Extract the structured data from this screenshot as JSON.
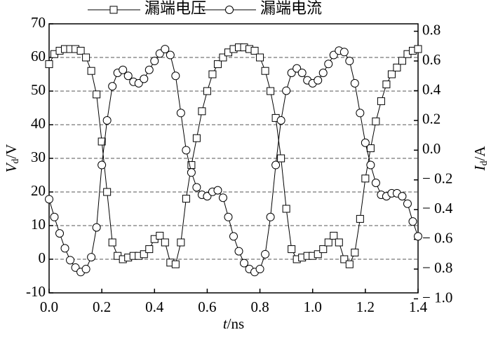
{
  "chart_data": {
    "type": "line",
    "legend": "top",
    "grid": true,
    "xlabel": {
      "var": "t",
      "unit": "/ns"
    },
    "ylabel": {
      "var": "V",
      "sub": "d",
      "unit": "/V"
    },
    "y2label": {
      "var": "I",
      "sub": "d",
      "unit": "/A"
    },
    "xlim": [
      0,
      1.4
    ],
    "xticks": [
      {
        "value": 0,
        "label": "0.0"
      },
      0.2,
      0.4,
      0.6,
      0.8,
      {
        "value": 1,
        "label": "1.0"
      },
      1.2,
      1.4
    ],
    "ylim": [
      -10,
      70
    ],
    "yticks": [
      -10,
      0,
      10,
      20,
      30,
      40,
      50,
      60,
      70
    ],
    "y2lim": [
      -0.96,
      0.85
    ],
    "y2ticks": [
      {
        "value": -1,
        "label": "− 1.0"
      },
      {
        "value": -0.8,
        "label": "− 0.8"
      },
      {
        "value": -0.6,
        "label": "− 0.6"
      },
      {
        "value": -0.4,
        "label": "− 0.4"
      },
      {
        "value": -0.2,
        "label": "− 0.2"
      },
      {
        "value": 0,
        "label": "0.0"
      },
      0.2,
      0.4,
      0.6,
      0.8
    ],
    "x": [
      0,
      0.02,
      0.04,
      0.06,
      0.08,
      0.1,
      0.12,
      0.14,
      0.16,
      0.18,
      0.2,
      0.22,
      0.24,
      0.26,
      0.28,
      0.3,
      0.32,
      0.34,
      0.36,
      0.38,
      0.4,
      0.42,
      0.44,
      0.46,
      0.48,
      0.5,
      0.52,
      0.54,
      0.56,
      0.58,
      0.6,
      0.62,
      0.64,
      0.66,
      0.68,
      0.7,
      0.72,
      0.74,
      0.76,
      0.78,
      0.8,
      0.82,
      0.84,
      0.86,
      0.88,
      0.9,
      0.92,
      0.94,
      0.96,
      0.98,
      1,
      1.02,
      1.04,
      1.06,
      1.08,
      1.1,
      1.12,
      1.14,
      1.16,
      1.18,
      1.2,
      1.22,
      1.24,
      1.26,
      1.28,
      1.3,
      1.32,
      1.34,
      1.36,
      1.38,
      1.4
    ],
    "series": [
      {
        "name": "漏端电压",
        "color": "#000000",
        "marker": "square",
        "values": [
          58,
          61,
          62,
          62.5,
          62.5,
          62.5,
          62,
          60,
          56,
          49,
          35,
          20,
          5,
          1,
          0,
          0.5,
          1,
          1,
          1.5,
          3,
          6,
          7,
          5,
          -1,
          -1.5,
          5,
          18,
          28,
          36,
          44,
          50,
          55,
          58,
          60,
          61.5,
          62.5,
          63,
          63,
          62.5,
          62,
          60,
          56,
          50,
          42,
          30,
          15,
          3,
          0,
          0.5,
          1,
          1,
          1.5,
          3,
          5,
          7,
          5,
          0,
          -1.5,
          2,
          12,
          24,
          33,
          41,
          47,
          52,
          55,
          57,
          59,
          61,
          62,
          62.5
        ]
      },
      {
        "name": "漏端电流",
        "color": "#000000",
        "marker": "circle",
        "axis": "y2",
        "values": [
          -0.33,
          -0.45,
          -0.56,
          -0.66,
          -0.74,
          -0.79,
          -0.82,
          -0.8,
          -0.72,
          -0.52,
          -0.1,
          0.2,
          0.43,
          0.52,
          0.54,
          0.5,
          0.46,
          0.45,
          0.48,
          0.54,
          0.6,
          0.65,
          0.68,
          0.64,
          0.5,
          0.25,
          0,
          -0.15,
          -0.25,
          -0.3,
          -0.31,
          -0.28,
          -0.27,
          -0.32,
          -0.45,
          -0.58,
          -0.68,
          -0.76,
          -0.8,
          -0.82,
          -0.8,
          -0.7,
          -0.45,
          -0.1,
          0.2,
          0.4,
          0.52,
          0.55,
          0.52,
          0.47,
          0.45,
          0.47,
          0.52,
          0.58,
          0.64,
          0.67,
          0.66,
          0.6,
          0.45,
          0.25,
          0.05,
          -0.1,
          -0.22,
          -0.3,
          -0.31,
          -0.29,
          -0.29,
          -0.31,
          -0.36,
          -0.48,
          -0.58
        ]
      }
    ]
  }
}
